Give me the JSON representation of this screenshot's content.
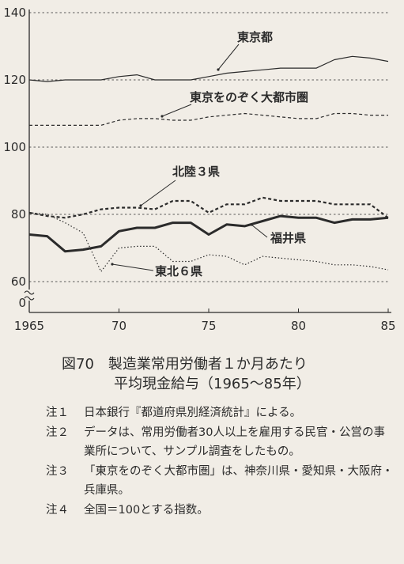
{
  "chart_data": {
    "type": "line",
    "x": [
      1965,
      1966,
      1967,
      1968,
      1969,
      1970,
      1971,
      1972,
      1973,
      1974,
      1975,
      1976,
      1977,
      1978,
      1979,
      1980,
      1981,
      1982,
      1983,
      1984,
      1985
    ],
    "xticks": [
      "1965",
      "70",
      "75",
      "80",
      "85"
    ],
    "xtick_values": [
      1965,
      1970,
      1975,
      1980,
      1985
    ],
    "yticks": [
      "140",
      "120",
      "100",
      "80",
      "60",
      "0"
    ],
    "ytick_values": [
      140,
      120,
      100,
      80,
      60
    ],
    "ylim": [
      55,
      140
    ],
    "grid": "dashed horizontal at 60,80,100,120,140",
    "axis_break": true,
    "series": [
      {
        "name": "東京都",
        "style": "solid",
        "width": 1.2,
        "values": [
          120,
          119.5,
          120,
          120,
          120,
          121,
          121.5,
          120,
          120,
          120,
          121,
          122,
          122.5,
          123,
          123.5,
          123.5,
          123.5,
          126,
          127,
          126.5,
          125.5
        ]
      },
      {
        "name": "東京をのぞく大都市圏",
        "style": "dashed",
        "width": 1.2,
        "values": [
          106.5,
          106.5,
          106.5,
          106.5,
          106.5,
          108,
          108.5,
          108.5,
          108,
          108,
          109,
          109.5,
          110,
          109.5,
          109,
          108.5,
          108.5,
          110,
          110,
          109.5,
          109.5
        ]
      },
      {
        "name": "北陸３県",
        "style": "dashed",
        "width": 2.2,
        "values": [
          80.5,
          79.5,
          79,
          80,
          81.5,
          82,
          82,
          81.5,
          84,
          84,
          80.5,
          83,
          83,
          85,
          84,
          84,
          84,
          83,
          83,
          83,
          79
        ]
      },
      {
        "name": "福井県",
        "style": "solid",
        "width": 3,
        "values": [
          74,
          73.5,
          69,
          69.5,
          70.5,
          75,
          76,
          76,
          77.5,
          77.5,
          74,
          77,
          76.5,
          78,
          79.5,
          79,
          79,
          77.5,
          78.5,
          78.5,
          79
        ]
      },
      {
        "name": "東北６県",
        "style": "dotted",
        "width": 1.2,
        "values": [
          80.5,
          80,
          77.5,
          74.5,
          63,
          70,
          70.5,
          70.5,
          66,
          66,
          68,
          67.5,
          65,
          67.5,
          67,
          66.5,
          66,
          65,
          65,
          64.5,
          63.5
        ]
      }
    ]
  },
  "caption": {
    "line1": "図70　製造業常用労働者１か月あたり",
    "line2": "平均現金給与（1965〜85年）"
  },
  "notes": [
    {
      "label": "注１",
      "text": "日本銀行『都道府県別経済統計』による。"
    },
    {
      "label": "注２",
      "text": "データは、常用労働者30人以上を雇用する民官・公営の事業所について、サンプル調査をしたもの。"
    },
    {
      "label": "注３",
      "text": "「東京をのぞく大都市圏」は、神奈川県・愛知県・大阪府・兵庫県。"
    },
    {
      "label": "注４",
      "text": "全国＝100とする指数。"
    }
  ],
  "colors": {
    "background": "#f1ede6",
    "ink": "#2b2b2b"
  }
}
